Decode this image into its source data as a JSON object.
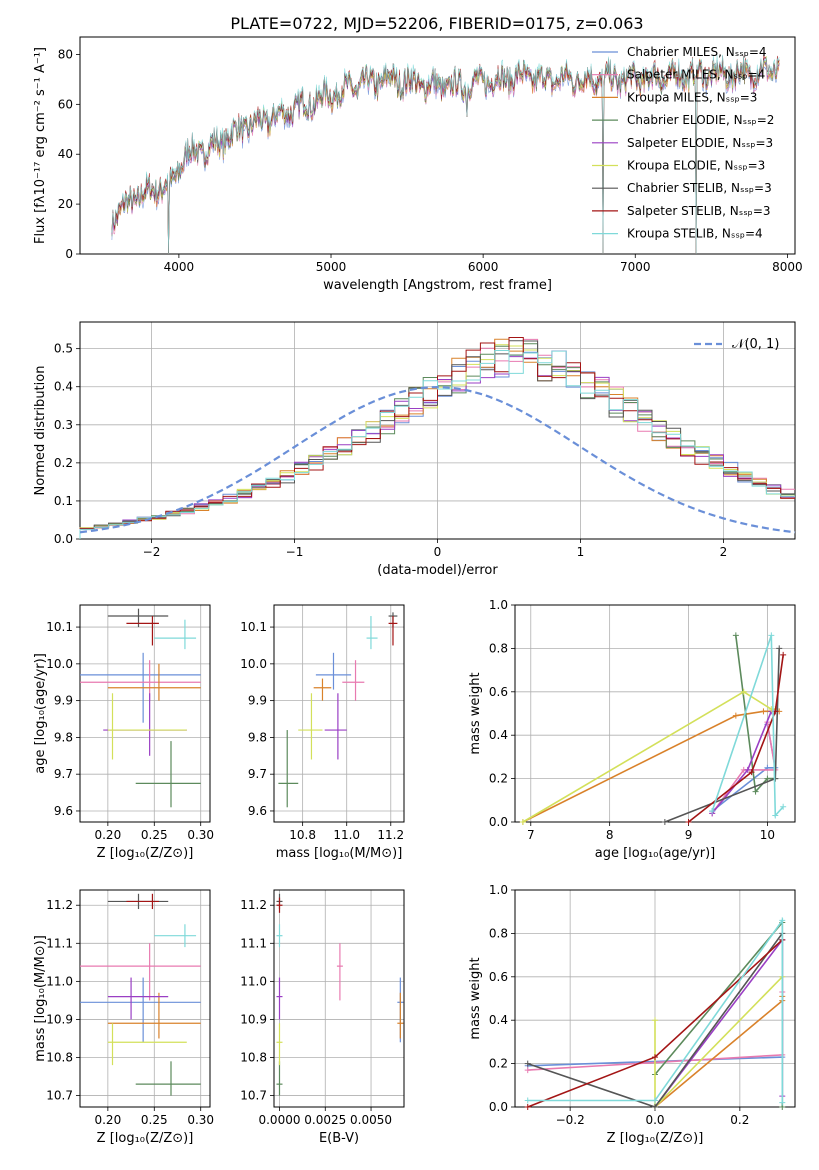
{
  "title": "PLATE=0722, MJD=52206, FIBERID=0175, z=0.063",
  "series_colors": [
    "#6a8fd8",
    "#e87ab0",
    "#d9822b",
    "#5c8a5c",
    "#9a3fc4",
    "#d3e05a",
    "#555555",
    "#a31515",
    "#7fd9d9"
  ],
  "chart_data": [
    {
      "id": "spectrum",
      "type": "line",
      "xlabel": "wavelength [Angstrom, rest frame]",
      "ylabel": "Flux [fλ10⁻¹⁷ erg cm⁻² s⁻¹ A⁻¹]",
      "xlim": [
        3350,
        8050
      ],
      "ylim": [
        0,
        87
      ],
      "xticks": [
        4000,
        5000,
        6000,
        7000,
        8000
      ],
      "yticks": [
        0,
        20,
        40,
        60,
        80
      ],
      "grid": false,
      "legend_position": "right",
      "legend": [
        "Chabrier MILES, Nₛₛₚ=4",
        "Salpeter MILES, Nₛₛₚ=4",
        "Kroupa MILES, Nₛₛₚ=3",
        "Chabrier ELODIE, Nₛₛₚ=2",
        "Salpeter ELODIE, Nₛₛₚ=3",
        "Kroupa ELODIE, Nₛₛₚ=3",
        "Chabrier STELIB, Nₛₛₚ=3",
        "Salpeter STELIB, Nₛₛₚ=3",
        "Kroupa STELIB, Nₛₛₚ=4"
      ],
      "continuum": {
        "x": [
          3560,
          3700,
          3850,
          3950,
          4050,
          4200,
          4400,
          4600,
          4800,
          5000,
          5200,
          5400,
          5600,
          5800,
          6000,
          6200,
          6400,
          6600,
          6800,
          7000,
          7200,
          7400,
          7600,
          7800,
          7950
        ],
        "y": [
          14,
          22,
          26,
          28,
          40,
          42,
          50,
          54,
          59,
          64,
          68,
          70,
          68,
          67,
          69,
          71,
          70,
          70,
          70,
          70,
          71,
          72,
          72,
          73,
          74
        ]
      },
      "features": [
        {
          "x": 3934,
          "y": 0
        },
        {
          "x": 5175,
          "y": 62
        },
        {
          "x": 5893,
          "y": 55
        },
        {
          "x": 6790,
          "y": 0
        },
        {
          "x": 7400,
          "y": 0
        }
      ]
    },
    {
      "id": "residuals",
      "type": "step-histogram",
      "xlabel": "(data-model)/error",
      "ylabel": "Normed distribution",
      "xlim": [
        -2.5,
        2.5
      ],
      "ylim": [
        0,
        0.57
      ],
      "xticks": [
        -2,
        -1,
        0,
        1,
        2
      ],
      "yticks": [
        0.0,
        0.1,
        0.2,
        0.3,
        0.4,
        0.5
      ],
      "grid": true,
      "legend_position": "top-right",
      "reference_curve": "𝒩(0, 1)",
      "bin_width": 0.1,
      "bin_start": -2.5,
      "histogram_centers": [
        0.027,
        0.033,
        0.04,
        0.046,
        0.052,
        0.058,
        0.066,
        0.074,
        0.084,
        0.094,
        0.106,
        0.118,
        0.132,
        0.147,
        0.164,
        0.182,
        0.2,
        0.22,
        0.24,
        0.262,
        0.285,
        0.31,
        0.335,
        0.36,
        0.385,
        0.41,
        0.43,
        0.45,
        0.465,
        0.475,
        0.48,
        0.475,
        0.465,
        0.45,
        0.43,
        0.41,
        0.385,
        0.36,
        0.335,
        0.31,
        0.285,
        0.262,
        0.24,
        0.22,
        0.2,
        0.182,
        0.164,
        0.147,
        0.132,
        0.118
      ]
    },
    {
      "id": "age-vs-Z",
      "type": "errorbar",
      "xlabel": "Z [log₁₀(Z/Z⊙)]",
      "ylabel": "age  [log₁₀(age/yr)]",
      "xlim": [
        0.17,
        0.31
      ],
      "ylim": [
        9.57,
        10.16
      ],
      "xticks": [
        0.2,
        0.25,
        0.3
      ],
      "yticks": [
        9.6,
        9.7,
        9.8,
        9.9,
        10.0,
        10.1
      ],
      "grid": true,
      "points": [
        {
          "x": 0.238,
          "y": 9.97,
          "xerr": [
            0.17,
            0.3
          ],
          "yerr": [
            9.84,
            10.03
          ]
        },
        {
          "x": 0.245,
          "y": 9.95,
          "xerr": [
            0.17,
            0.3
          ],
          "yerr": [
            9.9,
            10.01
          ]
        },
        {
          "x": 0.255,
          "y": 9.935,
          "xerr": [
            0.2,
            0.3
          ],
          "yerr": [
            9.9,
            10.0
          ]
        },
        {
          "x": 0.268,
          "y": 9.675,
          "xerr": [
            0.23,
            0.3
          ],
          "yerr": [
            9.61,
            9.79
          ]
        },
        {
          "x": 0.245,
          "y": 9.82,
          "xerr": [
            0.195,
            0.285
          ],
          "yerr": [
            9.75,
            9.92
          ]
        },
        {
          "x": 0.205,
          "y": 9.82,
          "xerr": [
            0.2,
            0.285
          ],
          "yerr": [
            9.74,
            9.92
          ]
        },
        {
          "x": 0.233,
          "y": 10.13,
          "xerr": [
            0.2,
            0.265
          ],
          "yerr": [
            10.1,
            10.15
          ]
        },
        {
          "x": 0.248,
          "y": 10.11,
          "xerr": [
            0.22,
            0.255
          ],
          "yerr": [
            10.05,
            10.13
          ]
        },
        {
          "x": 0.283,
          "y": 10.07,
          "xerr": [
            0.25,
            0.295
          ],
          "yerr": [
            10.04,
            10.12
          ]
        }
      ]
    },
    {
      "id": "age-vs-mass",
      "type": "errorbar",
      "xlabel": "mass [log₁₀(M/M⊙)]",
      "ylabel": "",
      "xlim": [
        10.67,
        11.26
      ],
      "ylim": [
        9.57,
        10.16
      ],
      "xticks": [
        10.8,
        11.0,
        11.2
      ],
      "yticks": [
        9.6,
        9.7,
        9.8,
        9.9,
        10.0,
        10.1
      ],
      "grid": true,
      "points": [
        {
          "x": 10.94,
          "y": 9.97,
          "xerr": [
            10.86,
            11.02
          ],
          "yerr": [
            9.93,
            10.03
          ]
        },
        {
          "x": 11.04,
          "y": 9.95,
          "xerr": [
            10.98,
            11.08
          ],
          "yerr": [
            9.9,
            10.01
          ]
        },
        {
          "x": 10.89,
          "y": 9.935,
          "xerr": [
            10.85,
            10.93
          ],
          "yerr": [
            9.9,
            9.96
          ]
        },
        {
          "x": 10.73,
          "y": 9.675,
          "xerr": [
            10.69,
            10.78
          ],
          "yerr": [
            9.61,
            9.82
          ]
        },
        {
          "x": 10.96,
          "y": 9.82,
          "xerr": [
            10.9,
            11.0
          ],
          "yerr": [
            9.74,
            9.92
          ]
        },
        {
          "x": 10.84,
          "y": 9.82,
          "xerr": [
            10.78,
            10.89
          ],
          "yerr": [
            9.74,
            9.92
          ]
        },
        {
          "x": 11.21,
          "y": 10.13,
          "xerr": [
            11.19,
            11.23
          ],
          "yerr": [
            10.1,
            10.14
          ]
        },
        {
          "x": 11.21,
          "y": 10.11,
          "xerr": [
            11.19,
            11.23
          ],
          "yerr": [
            10.05,
            10.13
          ]
        },
        {
          "x": 11.11,
          "y": 10.07,
          "xerr": [
            11.09,
            11.14
          ],
          "yerr": [
            10.04,
            10.13
          ]
        }
      ]
    },
    {
      "id": "weight-vs-age",
      "type": "line",
      "xlabel": "age  [log₁₀(age/yr)]",
      "ylabel": "mass weight",
      "xlim": [
        6.8,
        10.35
      ],
      "ylim": [
        0,
        1
      ],
      "xticks": [
        7,
        8,
        9,
        10
      ],
      "yticks": [
        0.0,
        0.2,
        0.4,
        0.6,
        0.8,
        1.0
      ],
      "grid": true,
      "series": [
        {
          "x": [
            9.3,
            10.0,
            10.1,
            10.0
          ],
          "y": [
            0.05,
            0.25,
            0.25,
            0.45
          ]
        },
        {
          "x": [
            9.3,
            9.7,
            10.1,
            10.0
          ],
          "y": [
            0.04,
            0.24,
            0.24,
            0.46
          ]
        },
        {
          "x": [
            6.9,
            9.6,
            9.95,
            10.15
          ],
          "y": [
            0.0,
            0.49,
            0.51,
            0.51
          ]
        },
        {
          "x": [
            9.6,
            9.85,
            10.0,
            10.1
          ],
          "y": [
            0.86,
            0.14,
            0.2,
            0.2
          ]
        },
        {
          "x": [
            9.3,
            9.75,
            10.05,
            10.1
          ],
          "y": [
            0.04,
            0.24,
            0.51,
            0.51
          ]
        },
        {
          "x": [
            6.9,
            9.7,
            10.05,
            10.1
          ],
          "y": [
            0.0,
            0.6,
            0.52,
            0.52
          ]
        },
        {
          "x": [
            8.7,
            10.1,
            10.15
          ],
          "y": [
            0.0,
            0.2,
            0.8
          ]
        },
        {
          "x": [
            9.0,
            9.8,
            10.1,
            10.2
          ],
          "y": [
            0.0,
            0.23,
            0.51,
            0.77
          ]
        },
        {
          "x": [
            9.3,
            10.05,
            10.1,
            10.2
          ],
          "y": [
            0.05,
            0.86,
            0.03,
            0.07
          ]
        }
      ]
    },
    {
      "id": "mass-vs-Z",
      "type": "errorbar",
      "xlabel": "Z [log₁₀(Z/Z⊙)]",
      "ylabel": "mass [log₁₀(M/M⊙)]",
      "xlim": [
        0.17,
        0.31
      ],
      "ylim": [
        10.67,
        11.24
      ],
      "xticks": [
        0.2,
        0.25,
        0.3
      ],
      "yticks": [
        10.7,
        10.8,
        10.9,
        11.0,
        11.1,
        11.2
      ],
      "grid": true,
      "points": [
        {
          "x": 0.238,
          "y": 10.945,
          "xerr": [
            0.17,
            0.3
          ],
          "yerr": [
            10.84,
            11.01
          ]
        },
        {
          "x": 0.245,
          "y": 11.04,
          "xerr": [
            0.17,
            0.3
          ],
          "yerr": [
            10.95,
            11.1
          ]
        },
        {
          "x": 0.255,
          "y": 10.89,
          "xerr": [
            0.2,
            0.3
          ],
          "yerr": [
            10.85,
            10.97
          ]
        },
        {
          "x": 0.268,
          "y": 10.73,
          "xerr": [
            0.23,
            0.3
          ],
          "yerr": [
            10.7,
            10.79
          ]
        },
        {
          "x": 0.225,
          "y": 10.96,
          "xerr": [
            0.2,
            0.265
          ],
          "yerr": [
            10.9,
            11.01
          ]
        },
        {
          "x": 0.205,
          "y": 10.84,
          "xerr": [
            0.2,
            0.285
          ],
          "yerr": [
            10.78,
            10.89
          ]
        },
        {
          "x": 0.233,
          "y": 11.21,
          "xerr": [
            0.2,
            0.265
          ],
          "yerr": [
            11.19,
            11.23
          ]
        },
        {
          "x": 0.248,
          "y": 11.21,
          "xerr": [
            0.22,
            0.255
          ],
          "yerr": [
            11.19,
            11.23
          ]
        },
        {
          "x": 0.283,
          "y": 11.12,
          "xerr": [
            0.25,
            0.295
          ],
          "yerr": [
            11.09,
            11.15
          ]
        }
      ]
    },
    {
      "id": "mass-vs-ebv",
      "type": "errorbar",
      "xlabel": "E(B-V)",
      "ylabel": "",
      "xlim": [
        -0.0003,
        0.0068
      ],
      "ylim": [
        10.67,
        11.24
      ],
      "xticks": [
        0.0,
        0.0025,
        0.005
      ],
      "xtick_labels": [
        "0.0000",
        "0.0025",
        "0.0050"
      ],
      "yticks": [
        10.7,
        10.8,
        10.9,
        11.0,
        11.1,
        11.2
      ],
      "grid": true,
      "points": [
        {
          "x": 0.0066,
          "y": 10.945,
          "yerr": [
            10.84,
            11.01
          ]
        },
        {
          "x": 0.0033,
          "y": 11.04,
          "yerr": [
            10.95,
            11.1
          ]
        },
        {
          "x": 0.0066,
          "y": 10.89,
          "yerr": [
            10.85,
            10.97
          ]
        },
        {
          "x": 0.0,
          "y": 10.73,
          "yerr": [
            10.7,
            10.79
          ]
        },
        {
          "x": 0.0,
          "y": 10.96,
          "yerr": [
            10.9,
            11.01
          ]
        },
        {
          "x": 0.0,
          "y": 10.84,
          "yerr": [
            10.78,
            10.89
          ]
        },
        {
          "x": 0.0,
          "y": 11.21,
          "yerr": [
            11.19,
            11.23
          ]
        },
        {
          "x": 0.0,
          "y": 11.2,
          "yerr": [
            11.18,
            11.22
          ]
        },
        {
          "x": 0.0,
          "y": 11.12,
          "yerr": [
            11.09,
            11.15
          ]
        }
      ]
    },
    {
      "id": "weight-vs-Z",
      "type": "line",
      "xlabel": "Z [log₁₀(Z/Z⊙)]",
      "ylabel": "mass weight",
      "xlim": [
        -0.33,
        0.33
      ],
      "ylim": [
        0,
        1
      ],
      "xticks": [
        -0.2,
        0.0,
        0.2
      ],
      "yticks": [
        0.0,
        0.2,
        0.4,
        0.6,
        0.8,
        1.0
      ],
      "grid": true,
      "series": [
        {
          "x": [
            -0.3,
            0.3,
            0.3
          ],
          "y": [
            0.19,
            0.23,
            0.77
          ]
        },
        {
          "x": [
            -0.3,
            0.3,
            0.3
          ],
          "y": [
            0.17,
            0.24,
            0.53
          ]
        },
        {
          "x": [
            0.0,
            0.3,
            0.3
          ],
          "y": [
            0.0,
            0.49,
            0.51
          ]
        },
        {
          "x": [
            0.0,
            0.3,
            0.3
          ],
          "y": [
            0.15,
            0.85,
            0.0
          ]
        },
        {
          "x": [
            0.0,
            0.3,
            0.3
          ],
          "y": [
            0.0,
            0.77,
            0.05
          ]
        },
        {
          "x": [
            0.0,
            0.0,
            0.3
          ],
          "y": [
            0.4,
            0.0,
            0.6
          ]
        },
        {
          "x": [
            -0.3,
            0.0,
            0.3
          ],
          "y": [
            0.2,
            0.0,
            0.8
          ]
        },
        {
          "x": [
            -0.3,
            0.0,
            0.3
          ],
          "y": [
            0.0,
            0.23,
            0.77
          ]
        },
        {
          "x": [
            -0.3,
            0.0,
            0.3,
            0.3
          ],
          "y": [
            0.03,
            0.03,
            0.86,
            0.02
          ]
        }
      ]
    }
  ]
}
